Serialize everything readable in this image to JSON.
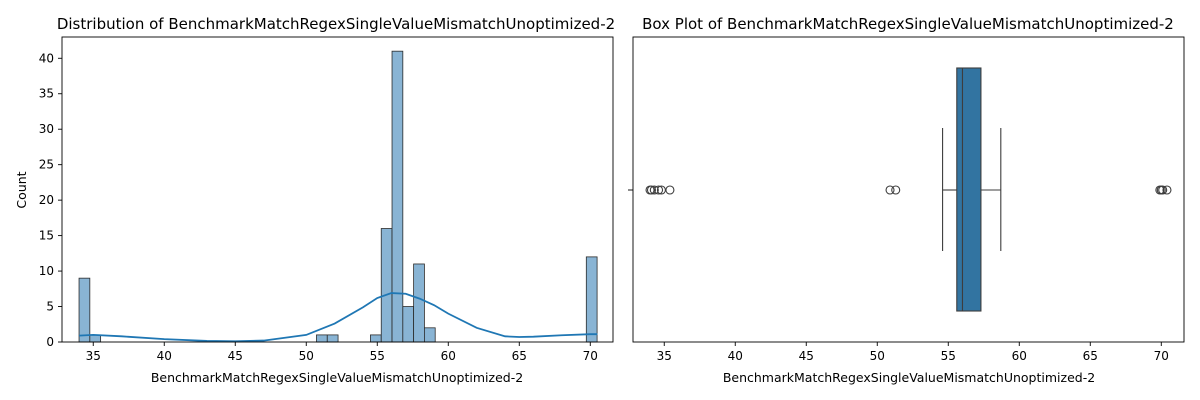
{
  "chart_data": [
    {
      "type": "bar",
      "subtype": "histogram-with-kde",
      "title": "Distribution of BenchmarkMatchRegexSingleValueMismatchUnoptimized-2",
      "xlabel": "BenchmarkMatchRegexSingleValueMismatchUnoptimized-2",
      "ylabel": "Count",
      "xlim": [
        32.8,
        71.6
      ],
      "ylim": [
        0,
        43
      ],
      "xticks": [
        35,
        40,
        45,
        50,
        55,
        60,
        65,
        70
      ],
      "yticks": [
        0,
        5,
        10,
        15,
        20,
        25,
        30,
        35,
        40
      ],
      "bin_width": 0.76,
      "bins": [
        {
          "x": 34.0,
          "count": 9
        },
        {
          "x": 34.76,
          "count": 1
        },
        {
          "x": 50.72,
          "count": 1
        },
        {
          "x": 51.48,
          "count": 1
        },
        {
          "x": 54.52,
          "count": 1
        },
        {
          "x": 55.28,
          "count": 16
        },
        {
          "x": 56.04,
          "count": 41
        },
        {
          "x": 56.8,
          "count": 5
        },
        {
          "x": 57.56,
          "count": 11
        },
        {
          "x": 58.32,
          "count": 2
        },
        {
          "x": 69.72,
          "count": 12
        }
      ],
      "kde": {
        "x": [
          34,
          35,
          37,
          40,
          43,
          45,
          47,
          50,
          52,
          54,
          55,
          56,
          57,
          58,
          59,
          60,
          62,
          64,
          65,
          66,
          68,
          70,
          70.5
        ],
        "y": [
          0.9,
          1.0,
          0.8,
          0.4,
          0.15,
          0.1,
          0.2,
          1.0,
          2.6,
          4.9,
          6.2,
          6.9,
          6.8,
          6.1,
          5.2,
          4.0,
          2.0,
          0.8,
          0.7,
          0.75,
          0.95,
          1.1,
          1.1
        ]
      },
      "grid": false,
      "colors": {
        "bar": "#89b4d4",
        "bar_edge": "#2b2b2b",
        "kde": "#1f77b4"
      }
    },
    {
      "type": "box",
      "title": "Box Plot of BenchmarkMatchRegexSingleValueMismatchUnoptimized-2",
      "xlabel": "BenchmarkMatchRegexSingleValueMismatchUnoptimized-2",
      "xlim": [
        32.8,
        71.6
      ],
      "xticks": [
        35,
        40,
        45,
        50,
        55,
        60,
        65,
        70
      ],
      "box": {
        "whisker_low": 54.6,
        "q1": 55.6,
        "median": 56.0,
        "q3": 57.3,
        "whisker_high": 58.7
      },
      "outliers": [
        34.0,
        34.1,
        34.3,
        34.6,
        34.8,
        35.4,
        50.9,
        51.3,
        69.9,
        70.0,
        70.1,
        70.4
      ],
      "grid": false,
      "colors": {
        "box": "#3274a1",
        "line": "#3d3d3d"
      }
    }
  ]
}
